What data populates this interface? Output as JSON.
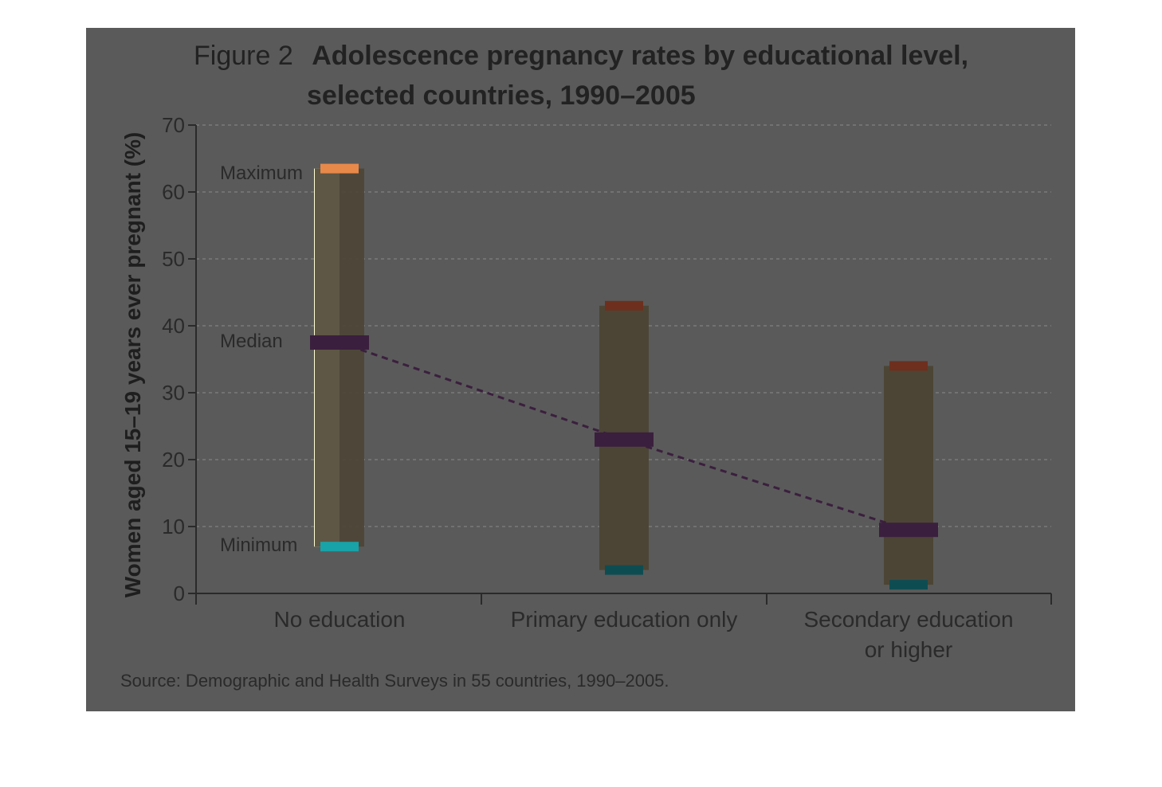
{
  "figure": {
    "title_prefix": "Figure 2",
    "title_line1": "Adolescence pregnancy rates by educational level,",
    "title_line2": "selected countries, 1990–2005",
    "source": "Source: Demographic and Health Surveys in 55 countries, 1990–2005."
  },
  "legend": {
    "maximum": "Maximum",
    "median": "Median",
    "minimum": "Minimum"
  },
  "colors": {
    "panel": "#5a5a5a",
    "range_bar": "#4c4535",
    "highlight_bar": "#ffffd6",
    "max_mark": "#6e2f1e",
    "max_mark_legend": "#e8894a",
    "median_mark": "#3b1f3e",
    "median_mark_legend": "#7a2f83",
    "min_mark": "#0d4d52",
    "min_mark_legend": "#18a3a8",
    "trend_line": "#3b1f3e",
    "grid": "#7a7a7a",
    "axis": "#2a2a2a"
  },
  "chart_data": {
    "type": "range",
    "title": "Adolescence pregnancy rates by educational level, selected countries, 1990–2005",
    "ylabel": "Women aged 15–19 years ever pregnant (%)",
    "xlabel": "",
    "ylim": [
      0,
      70
    ],
    "yticks": [
      "0",
      "10",
      "20",
      "30",
      "40",
      "50",
      "60",
      "70"
    ],
    "grid": true,
    "categories": [
      "No education",
      "Primary education only",
      "Secondary education\nor higher"
    ],
    "category_lines": [
      [
        "No education"
      ],
      [
        "Primary education only"
      ],
      [
        "Secondary education",
        "or higher"
      ]
    ],
    "series": [
      {
        "name": "Maximum",
        "values": [
          63.5,
          43,
          34
        ]
      },
      {
        "name": "Median",
        "values": [
          37.5,
          23,
          9.5
        ]
      },
      {
        "name": "Minimum",
        "values": [
          7,
          3.5,
          1.3
        ]
      }
    ]
  }
}
